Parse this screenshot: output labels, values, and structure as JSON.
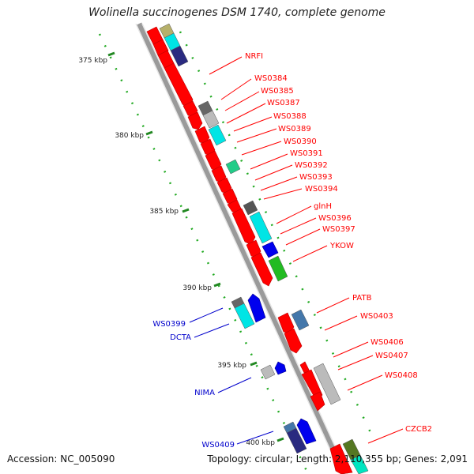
{
  "title": "Wolinella succinogenes DSM 1740, complete genome",
  "footer": {
    "accession": "Accession: NC_005090",
    "summary": "Topology: circular; Length: 2,110,355 bp; Genes: 2,091"
  },
  "colors": {
    "forward": "#ff0000",
    "reverse": "#0000ff",
    "backbone": "#999999",
    "tick_marks": "#22aa22"
  },
  "ruler_ticks": [
    "375 kbp",
    "380 kbp",
    "385 kbp",
    "390 kbp",
    "395 kbp",
    "400 kbp"
  ],
  "forward_labels": [
    "NRFI",
    "WS0384",
    "WS0385",
    "WS0387",
    "WS0388",
    "WS0389",
    "WS0390",
    "WS0391",
    "WS0392",
    "WS0393",
    "WS0394",
    "glnH",
    "WS0396",
    "WS0397",
    "YKOW",
    "PATB",
    "WS0403",
    "WS0406",
    "WS0407",
    "WS0408",
    "CZCB2"
  ],
  "reverse_labels": [
    "WS0399",
    "DCTA",
    "NIMA",
    "WS0409"
  ]
}
